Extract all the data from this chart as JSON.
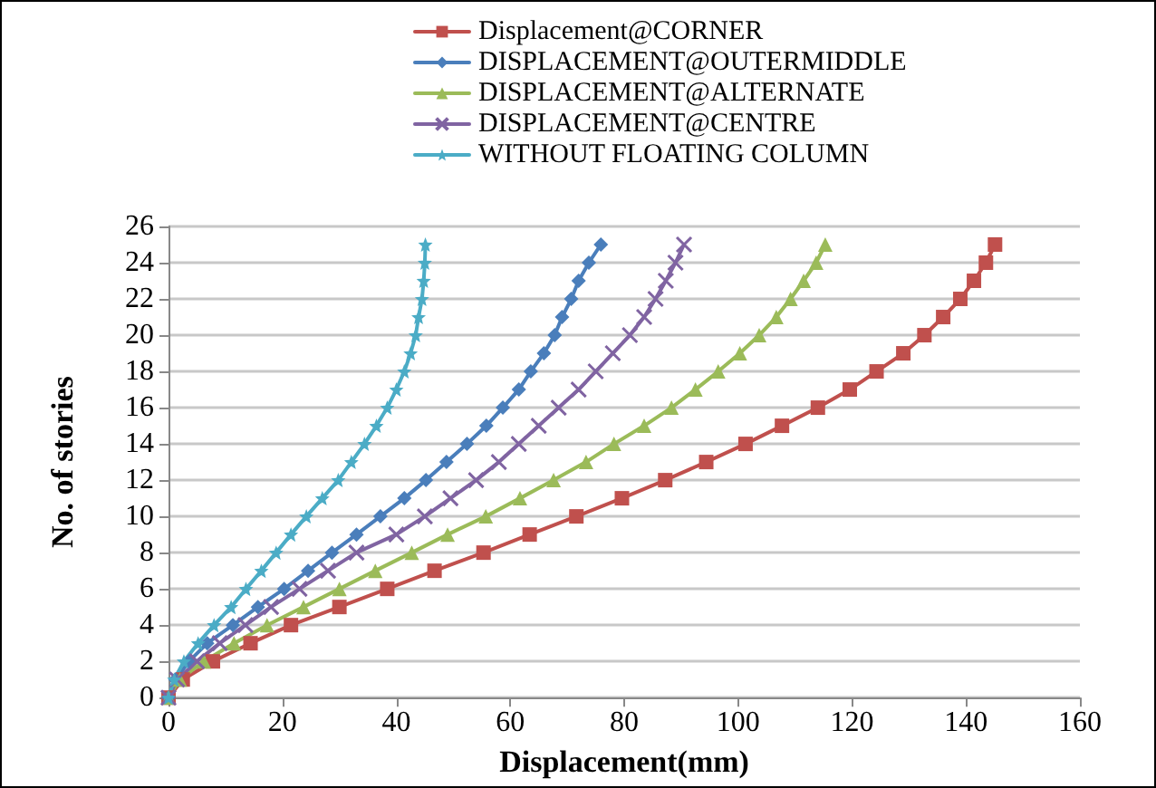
{
  "chart_data": {
    "type": "line",
    "xlabel": "Displacement(mm)",
    "ylabel": "No. of stories",
    "xlim": [
      0,
      160
    ],
    "xticks": [
      0,
      20,
      40,
      60,
      80,
      100,
      120,
      140,
      160
    ],
    "ylim": [
      0,
      26
    ],
    "yticks": [
      0,
      2,
      4,
      6,
      8,
      10,
      12,
      14,
      16,
      18,
      20,
      22,
      24,
      26
    ],
    "grid": "y",
    "legend": "top right",
    "line_style": "solid",
    "series": [
      {
        "name": "Displacement@CORNER",
        "color": "#c0504d",
        "marker": "square",
        "x": [
          0,
          2.5,
          7.8,
          14.4,
          21.5,
          30,
          38.4,
          46.7,
          55.3,
          63.4,
          71.6,
          79.6,
          87.2,
          94.4,
          101.3,
          107.7,
          114,
          119.6,
          124.3,
          129,
          132.7,
          136,
          139,
          141.4,
          143.5,
          145.1
        ],
        "values": [
          0,
          1,
          2,
          3,
          4,
          5,
          6,
          7,
          8,
          9,
          10,
          11,
          12,
          13,
          14,
          15,
          16,
          17,
          18,
          19,
          20,
          21,
          22,
          23,
          24,
          25
        ]
      },
      {
        "name": "DISPLACEMENT@OUTERMIDDLE",
        "color": "#4a7ebb",
        "marker": "diamond",
        "x": [
          0,
          1.2,
          3.6,
          6.8,
          11.3,
          15.7,
          20.3,
          24.5,
          28.7,
          33,
          37.2,
          41.4,
          45.2,
          48.8,
          52.4,
          55.8,
          58.7,
          61.5,
          63.6,
          65.9,
          67.8,
          69.1,
          70.7,
          72,
          73.8,
          75.9
        ],
        "values": [
          0,
          1,
          2,
          3,
          4,
          5,
          6,
          7,
          8,
          9,
          10,
          11,
          12,
          13,
          14,
          15,
          16,
          17,
          18,
          19,
          20,
          21,
          22,
          23,
          24,
          25
        ]
      },
      {
        "name": "DISPLACEMENT@ALTERNATE",
        "color": "#9bbb59",
        "marker": "triangle",
        "x": [
          0,
          2,
          6.2,
          11.5,
          17.3,
          23.7,
          30,
          36.3,
          42.7,
          49,
          55.7,
          61.7,
          67.6,
          73.3,
          78.2,
          83.5,
          88.3,
          92.5,
          96.5,
          100.3,
          103.7,
          106.7,
          109.2,
          111.5,
          113.7,
          115.3
        ],
        "values": [
          0,
          1,
          2,
          3,
          4,
          5,
          6,
          7,
          8,
          9,
          10,
          11,
          12,
          13,
          14,
          15,
          16,
          17,
          18,
          19,
          20,
          21,
          22,
          23,
          24,
          25
        ]
      },
      {
        "name": "DISPLACEMENT@CENTRE",
        "color": "#8064a2",
        "marker": "cross",
        "x": [
          0,
          1.5,
          5,
          9,
          13.5,
          18,
          23,
          28,
          33,
          40,
          45,
          49.5,
          54,
          58,
          61.5,
          65,
          68.5,
          72,
          75,
          78,
          81,
          83.5,
          85.5,
          87.3,
          89,
          90.5
        ],
        "values": [
          0,
          1,
          2,
          3,
          4,
          5,
          6,
          7,
          8,
          9,
          10,
          11,
          12,
          13,
          14,
          15,
          16,
          17,
          18,
          19,
          20,
          21,
          22,
          23,
          24,
          25
        ]
      },
      {
        "name": "WITHOUT FLOATING COLUMN",
        "color": "#4bacc6",
        "marker": "star",
        "x": [
          0,
          1,
          2.7,
          5.2,
          8,
          11,
          13.6,
          16.3,
          18.9,
          21.5,
          24.2,
          27,
          29.8,
          32.1,
          34.4,
          36.5,
          38.4,
          40,
          41.4,
          42.5,
          43.4,
          43.9,
          44.5,
          44.8,
          45,
          45.1
        ],
        "values": [
          0,
          1,
          2,
          3,
          4,
          5,
          6,
          7,
          8,
          9,
          10,
          11,
          12,
          13,
          14,
          15,
          16,
          17,
          18,
          19,
          20,
          21,
          22,
          23,
          24,
          25
        ]
      }
    ]
  }
}
